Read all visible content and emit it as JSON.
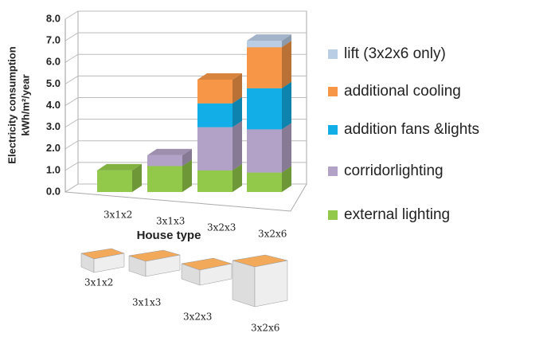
{
  "chart_data": {
    "type": "bar3d_stacked",
    "ylabel": [
      "Electricity consumption",
      "kWh/m²/year"
    ],
    "xlabel": "House type",
    "categories": [
      "3x1x2",
      "3x1x3",
      "3x2x3",
      "3x2x6"
    ],
    "series": [
      {
        "name": "external lighting",
        "color": "#92c94a",
        "values": [
          1.0,
          1.2,
          1.0,
          0.9
        ]
      },
      {
        "name": "corridorlighting",
        "color": "#b3a2c7",
        "values": [
          0,
          0.5,
          2.0,
          2.0
        ]
      },
      {
        "name": "addition fans &lights",
        "color": "#12aee8",
        "values": [
          0,
          0,
          1.1,
          1.9
        ]
      },
      {
        "name": "additional cooling",
        "color": "#f79646",
        "values": [
          0,
          0,
          1.1,
          1.9
        ]
      },
      {
        "name": "lift (3x2x6 only)",
        "color": "#b9cde5",
        "values": [
          0,
          0,
          0,
          0.3
        ]
      }
    ],
    "ylim": [
      0,
      8
    ],
    "yticks": [
      {
        "value": 0,
        "label": "0.0"
      },
      {
        "value": 1,
        "label": "1.0"
      },
      {
        "value": 2,
        "label": "2.0"
      },
      {
        "value": 3,
        "label": "3.0"
      },
      {
        "value": 4,
        "label": "4.0"
      },
      {
        "value": 5,
        "label": "5.0"
      },
      {
        "value": 6,
        "label": "6.0"
      },
      {
        "value": 7,
        "label": "7.0"
      },
      {
        "value": 8,
        "label": "8.0"
      }
    ],
    "grid": true
  }
}
